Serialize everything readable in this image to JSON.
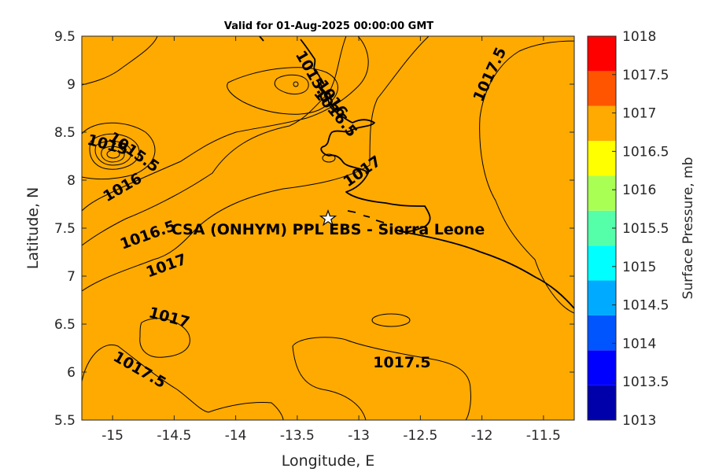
{
  "title": "Valid for 01-Aug-2025 00:00:00 GMT",
  "station_label": "CSA (ONHYM) PPL EBS  - Sierra Leone",
  "chart_data": {
    "type": "contour map",
    "xlabel": "Longitude, E",
    "ylabel": "Latitude, N",
    "xlim": [
      -15.25,
      -11.25
    ],
    "ylim": [
      5.5,
      9.5
    ],
    "xticks": [
      "-15",
      "-14.5",
      "-14",
      "-13.5",
      "-13",
      "-12.5",
      "-12",
      "-11.5"
    ],
    "yticks": [
      "5.5",
      "6",
      "6.5",
      "7",
      "7.5",
      "8",
      "8.5",
      "9",
      "9.5"
    ],
    "station": {
      "lon": -13.25,
      "lat": 7.6
    },
    "contour_labels": [
      {
        "text": "1015",
        "lon": -15.05,
        "lat": 8.32
      },
      {
        "text": "1015.5",
        "lon": -14.85,
        "lat": 8.25
      },
      {
        "text": "1016",
        "lon": -14.9,
        "lat": 7.88
      },
      {
        "text": "1016.5",
        "lon": -14.7,
        "lat": 7.38
      },
      {
        "text": "1017",
        "lon": -14.55,
        "lat": 7.06
      },
      {
        "text": "1017",
        "lon": -14.55,
        "lat": 6.52
      },
      {
        "text": "1017.5",
        "lon": -14.8,
        "lat": 5.98
      },
      {
        "text": "1015.5",
        "lon": -13.4,
        "lat": 9.05
      },
      {
        "text": "1016",
        "lon": -13.25,
        "lat": 8.82
      },
      {
        "text": "1016.5",
        "lon": -13.22,
        "lat": 8.67
      },
      {
        "text": "1017",
        "lon": -12.95,
        "lat": 8.05
      },
      {
        "text": "1017.5",
        "lon": -11.9,
        "lat": 9.08
      },
      {
        "text": "1017.5",
        "lon": -12.65,
        "lat": 6.05
      }
    ],
    "colorbar": {
      "label": "Surface Pressure, mb",
      "levels": [
        "1013",
        "1013.5",
        "1014",
        "1014.5",
        "1015",
        "1015.5",
        "1016",
        "1016.5",
        "1017",
        "1017.5",
        "1018"
      ],
      "colors": [
        "#0000aa",
        "#0000ff",
        "#0055ff",
        "#00aaff",
        "#00ffff",
        "#55ffaa",
        "#aaff55",
        "#ffff00",
        "#ffaa00",
        "#ff5500",
        "#ff0000"
      ]
    }
  }
}
